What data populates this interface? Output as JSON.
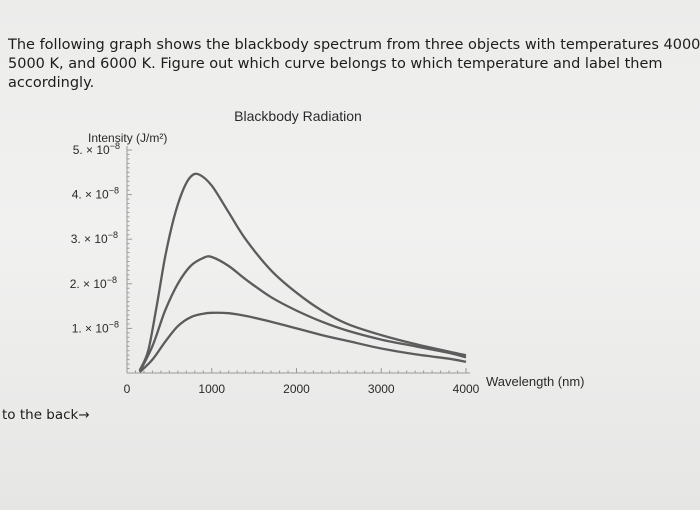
{
  "question": {
    "lines": [
      "The following graph shows the blackbody spectrum from three objects with temperatures 4000 K,",
      "5000 K, and 6000 K. Figure out which curve belongs to which temperature and label them",
      "accordingly."
    ]
  },
  "footer": {
    "text": "to the back→"
  },
  "chart_data": {
    "type": "line",
    "title": "Blackbody Radiation",
    "ylabel": "Intensity (J/m²)",
    "xlabel": "Wavelength (nm)",
    "xlim": [
      0,
      4000
    ],
    "ylim": [
      0,
      5e-08
    ],
    "x_ticks": [
      0,
      1000,
      2000,
      3000,
      4000
    ],
    "x_tick_labels": [
      "0",
      "1000",
      "2000",
      "3000",
      "4000"
    ],
    "y_ticks": [
      1e-08,
      2e-08,
      3e-08,
      4e-08,
      5e-08
    ],
    "y_tick_labels": [
      {
        "mant": "1. × 10",
        "exp": "−8"
      },
      {
        "mant": "2. × 10",
        "exp": "−8"
      },
      {
        "mant": "3. × 10",
        "exp": "−8"
      },
      {
        "mant": "4. × 10",
        "exp": "−8"
      },
      {
        "mant": "5. × 10",
        "exp": "−8"
      }
    ],
    "grid": false,
    "series": [
      {
        "x": [
          150,
          250,
          350,
          450,
          550,
          650,
          750,
          850,
          1000,
          1200,
          1400,
          1700,
          2000,
          2300,
          2600,
          3000,
          3400,
          3800,
          4000
        ],
        "values": [
          6e-10,
          5e-09,
          1.5e-08,
          2.6e-08,
          3.45e-08,
          4.05e-08,
          4.4e-08,
          4.45e-08,
          4.2e-08,
          3.6e-08,
          3e-08,
          2.3e-08,
          1.8e-08,
          1.4e-08,
          1.1e-08,
          8.5e-09,
          6.5e-09,
          4.8e-09,
          4e-09
        ]
      },
      {
        "x": [
          150,
          300,
          450,
          600,
          750,
          900,
          1000,
          1200,
          1400,
          1700,
          2000,
          2300,
          2600,
          3000,
          3400,
          3800,
          4000
        ],
        "values": [
          3e-10,
          6e-09,
          1.4e-08,
          2e-08,
          2.4e-08,
          2.58e-08,
          2.6e-08,
          2.4e-08,
          2.1e-08,
          1.7e-08,
          1.4e-08,
          1.15e-08,
          9.5e-09,
          7.5e-09,
          6e-09,
          4.5e-09,
          3.5e-09
        ]
      },
      {
        "x": [
          150,
          300,
          450,
          600,
          750,
          900,
          1000,
          1200,
          1400,
          1700,
          2000,
          2300,
          2600,
          3000,
          3400,
          3800,
          4000
        ],
        "values": [
          2e-10,
          3e-09,
          7e-09,
          1.05e-08,
          1.25e-08,
          1.33e-08,
          1.35e-08,
          1.34e-08,
          1.28e-08,
          1.15e-08,
          1e-08,
          8.5e-09,
          7.2e-09,
          5.5e-09,
          4.2e-09,
          3.2e-09,
          2.5e-09
        ]
      }
    ]
  }
}
